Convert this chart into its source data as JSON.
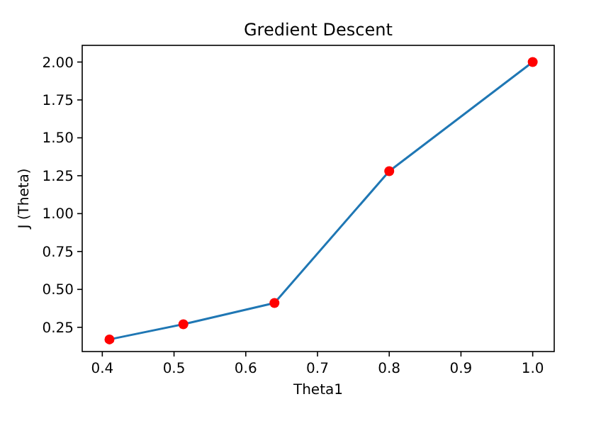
{
  "chart_data": {
    "type": "line",
    "title": "Gredient Descent",
    "xlabel": "Theta1",
    "ylabel": "J (Theta)",
    "xlim": [
      0.372,
      1.03
    ],
    "ylim": [
      0.09,
      2.11
    ],
    "xticks": [
      {
        "value": 0.4,
        "label": "0.4"
      },
      {
        "value": 0.5,
        "label": "0.5"
      },
      {
        "value": 0.6,
        "label": "0.6"
      },
      {
        "value": 0.7,
        "label": "0.7"
      },
      {
        "value": 0.8,
        "label": "0.8"
      },
      {
        "value": 0.9,
        "label": "0.9"
      },
      {
        "value": 1.0,
        "label": "1.0"
      }
    ],
    "yticks": [
      {
        "value": 0.25,
        "label": "0.25"
      },
      {
        "value": 0.5,
        "label": "0.50"
      },
      {
        "value": 0.75,
        "label": "0.75"
      },
      {
        "value": 1.0,
        "label": "1.00"
      },
      {
        "value": 1.25,
        "label": "1.25"
      },
      {
        "value": 1.5,
        "label": "1.50"
      },
      {
        "value": 1.75,
        "label": "1.75"
      },
      {
        "value": 2.0,
        "label": "2.00"
      }
    ],
    "grid": false,
    "series": [
      {
        "color": "#1f77b4",
        "marker": "none",
        "x": [
          0.41,
          0.513,
          0.64,
          0.8,
          1.0
        ],
        "values": [
          0.17,
          0.27,
          0.41,
          1.28,
          2.0
        ]
      },
      {
        "type": "scatter",
        "color": "#ff0000",
        "marker": "circle",
        "x": [
          0.41,
          0.513,
          0.64,
          0.8,
          1.0
        ],
        "values": [
          0.17,
          0.27,
          0.41,
          1.28,
          2.0
        ]
      }
    ]
  }
}
